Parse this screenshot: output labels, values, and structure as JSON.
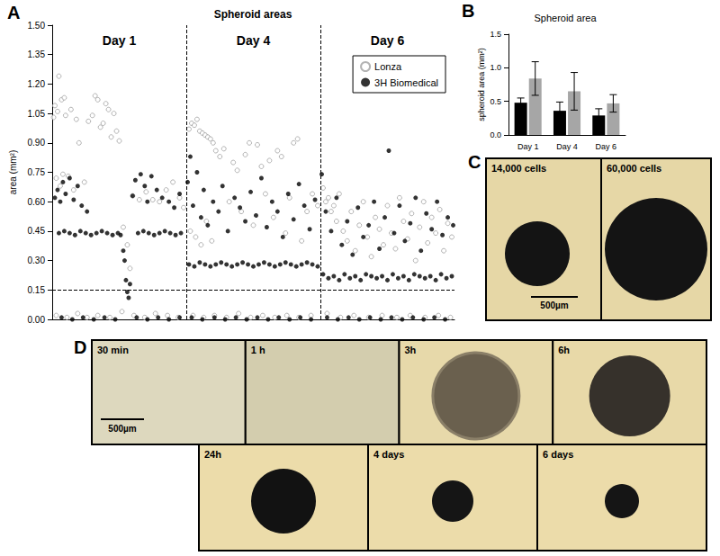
{
  "chart_data": [
    {
      "panel": "A",
      "type": "scatter",
      "title": "Spheroid areas",
      "y_label": "area (mm²)",
      "xlim": [
        0,
        300
      ],
      "ylim": [
        0,
        1.5
      ],
      "yticks": [
        {
          "value": 0,
          "label": "0.00"
        },
        0.15,
        {
          "value": 0.3,
          "label": "0.30"
        },
        0.45,
        {
          "value": 0.6,
          "label": "0.60"
        },
        0.75,
        {
          "value": 0.9,
          "label": "0.90"
        },
        1.05,
        {
          "value": 1.2,
          "label": "1.20"
        },
        1.35,
        {
          "value": 1.5,
          "label": "1.50"
        }
      ],
      "tick_labels": "y",
      "grid": false,
      "legend": "upper right",
      "annotations": [
        {
          "text": "Day 1",
          "x": 50,
          "y": 1.42
        },
        {
          "text": "Day 4",
          "x": 150,
          "y": 1.42
        },
        {
          "text": "Day 6",
          "x": 250,
          "y": 1.42
        }
      ],
      "reference_lines": {
        "x": [
          100,
          200
        ],
        "y": [
          0.15
        ]
      },
      "series": [
        {
          "name": "Lonza",
          "color": "#a0a0a0",
          "marker": "open circle",
          "x": [
            1,
            2,
            3,
            4,
            5,
            6,
            7,
            8,
            9,
            10,
            12,
            14,
            16,
            18,
            20,
            24,
            27,
            30,
            32,
            34,
            36,
            38,
            40,
            42,
            44,
            46,
            48,
            50,
            53,
            56,
            58,
            60,
            65,
            70,
            75,
            80,
            85,
            90,
            95,
            98,
            3,
            11,
            19,
            26,
            34,
            43,
            52,
            61,
            69,
            77,
            86,
            94,
            102,
            104,
            106,
            108,
            110,
            112,
            114,
            116,
            118,
            120,
            122,
            125,
            128,
            132,
            135,
            138,
            141,
            144,
            147,
            150,
            153,
            156,
            159,
            162,
            165,
            168,
            171,
            174,
            177,
            180,
            183,
            186,
            190,
            194,
            198,
            103,
            107,
            111,
            115,
            119,
            105,
            113,
            121,
            130,
            139,
            148,
            157,
            166,
            175,
            184,
            193,
            202,
            204,
            206,
            208,
            210,
            212,
            214,
            217,
            220,
            223,
            226,
            229,
            232,
            235,
            238,
            241,
            244,
            247,
            250,
            253,
            256,
            259,
            262,
            265,
            268,
            271,
            274,
            277,
            280,
            283,
            286,
            289,
            292,
            295,
            298,
            205,
            215,
            225,
            236,
            246,
            257,
            267,
            278,
            288,
            297
          ],
          "values": [
            1.03,
            1.09,
            0.72,
            1.06,
            1.24,
            0.68,
            1.12,
            0.74,
            1.13,
            1.04,
            0.73,
            1.07,
            0.66,
            1.02,
            0.9,
            0.7,
            1.01,
            1.04,
            1.14,
            1.12,
            0.98,
            1.0,
            1.1,
            1.07,
            0.93,
            1.05,
            0.96,
            0.91,
            0.47,
            0.38,
            0.26,
            0.63,
            0.61,
            0.65,
            0.61,
            0.6,
            0.66,
            0.7,
            0.62,
            0.57,
            0.02,
            0.01,
            0.03,
            0.01,
            0.02,
            0.01,
            0.04,
            0.02,
            0.01,
            0.03,
            0.02,
            0.01,
            0.97,
            1.0,
            0.99,
            1.02,
            0.96,
            0.95,
            0.94,
            0.93,
            0.92,
            0.9,
            0.86,
            0.83,
            0.87,
            0.6,
            0.8,
            0.76,
            0.55,
            0.84,
            0.9,
            0.48,
            0.89,
            0.78,
            0.64,
            0.81,
            0.52,
            0.86,
            0.83,
            0.44,
            0.62,
            0.9,
            0.92,
            0.4,
            0.55,
            0.64,
            0.58,
            0.45,
            0.42,
            0.38,
            0.5,
            0.4,
            0.02,
            0.01,
            0.02,
            0.01,
            0.03,
            0.01,
            0.02,
            0.01,
            0.02,
            0.01,
            0.02,
            0.67,
            0.6,
            0.62,
            0.55,
            0.58,
            0.5,
            0.64,
            0.45,
            0.4,
            0.55,
            0.35,
            0.48,
            0.6,
            0.42,
            0.32,
            0.52,
            0.46,
            0.38,
            0.58,
            0.44,
            0.36,
            0.62,
            0.5,
            0.41,
            0.54,
            0.3,
            0.47,
            0.6,
            0.39,
            0.52,
            0.44,
            0.56,
            0.35,
            0.49,
            0.42,
            0.03,
            0.01,
            0.02,
            0.01,
            0.02,
            0.01,
            0.02,
            0.01,
            0.02,
            0.01
          ]
        },
        {
          "name": "3H Biomedical",
          "color": "#000000",
          "marker": "filled circle",
          "x": [
            5,
            9,
            13,
            17,
            21,
            25,
            29,
            33,
            37,
            41,
            45,
            49,
            51,
            64,
            68,
            72,
            76,
            80,
            84,
            88,
            92,
            96,
            2,
            4,
            6,
            8,
            10,
            13,
            16,
            19,
            22,
            26,
            60,
            62,
            66,
            69,
            71,
            74,
            78,
            82,
            87,
            91,
            95,
            53,
            54,
            55,
            56,
            57,
            58,
            7,
            15,
            23,
            31,
            39,
            47,
            63,
            71,
            79,
            87,
            95,
            102,
            106,
            110,
            114,
            118,
            122,
            126,
            130,
            134,
            138,
            142,
            146,
            150,
            154,
            158,
            162,
            166,
            170,
            174,
            178,
            182,
            186,
            190,
            194,
            198,
            101,
            103,
            105,
            108,
            111,
            113,
            116,
            120,
            124,
            127,
            131,
            136,
            140,
            144,
            148,
            152,
            156,
            160,
            164,
            168,
            172,
            176,
            180,
            184,
            188,
            192,
            196,
            104,
            112,
            121,
            129,
            137,
            145,
            153,
            161,
            169,
            177,
            185,
            193,
            202,
            206,
            210,
            214,
            218,
            222,
            226,
            230,
            234,
            238,
            242,
            246,
            250,
            254,
            258,
            262,
            266,
            270,
            274,
            278,
            282,
            286,
            290,
            294,
            298,
            201,
            204,
            208,
            212,
            216,
            220,
            224,
            228,
            232,
            236,
            240,
            244,
            248,
            251,
            255,
            259,
            263,
            267,
            271,
            275,
            279,
            283,
            287,
            291,
            295,
            299,
            205,
            213,
            221,
            229,
            237,
            245,
            253,
            261,
            269,
            277,
            285,
            293
          ],
          "values": [
            0.44,
            0.45,
            0.44,
            0.43,
            0.45,
            0.44,
            0.43,
            0.44,
            0.45,
            0.44,
            0.43,
            0.44,
            0.43,
            0.44,
            0.45,
            0.44,
            0.43,
            0.44,
            0.45,
            0.44,
            0.43,
            0.44,
            0.62,
            0.66,
            0.6,
            0.7,
            0.64,
            0.72,
            0.61,
            0.68,
            0.58,
            0.55,
            0.63,
            0.71,
            0.74,
            0.68,
            0.6,
            0.73,
            0.66,
            0.62,
            0.6,
            0.57,
            0.64,
            0.35,
            0.3,
            0.2,
            0.14,
            0.11,
            0.18,
            0.01,
            0,
            0.01,
            0,
            0.01,
            0,
            0.01,
            0,
            0.01,
            0,
            0.01,
            0.28,
            0.27,
            0.29,
            0.28,
            0.27,
            0.28,
            0.29,
            0.28,
            0.27,
            0.28,
            0.29,
            0.28,
            0.27,
            0.28,
            0.29,
            0.28,
            0.27,
            0.28,
            0.29,
            0.28,
            0.27,
            0.28,
            0.29,
            0.28,
            0.27,
            0.7,
            0.83,
            0.58,
            0.75,
            0.52,
            0.66,
            0.48,
            0.6,
            0.55,
            0.68,
            0.45,
            0.62,
            0.57,
            0.5,
            0.65,
            0.53,
            0.72,
            0.47,
            0.6,
            0.55,
            0.42,
            0.64,
            0.51,
            0.69,
            0.58,
            0.46,
            0.61,
            0.01,
            0,
            0.01,
            0,
            0.01,
            0,
            0.01,
            0,
            0.01,
            0,
            0.01,
            0,
            0.23,
            0.21,
            0.22,
            0.2,
            0.23,
            0.21,
            0.22,
            0.2,
            0.23,
            0.22,
            0.21,
            0.22,
            0.2,
            0.23,
            0.21,
            0.22,
            0.2,
            0.23,
            0.22,
            0.21,
            0.22,
            0.2,
            0.23,
            0.21,
            0.22,
            0.74,
            0.55,
            0.45,
            0.62,
            0.38,
            0.5,
            0.33,
            0.57,
            0.42,
            0.48,
            0.6,
            0.36,
            0.52,
            0.86,
            0.44,
            0.58,
            0.4,
            0.49,
            0.62,
            0.35,
            0.54,
            0.46,
            0.6,
            0.43,
            0.52,
            0.48,
            0.01,
            0,
            0.01,
            0,
            0.01,
            0,
            0.01,
            0,
            0.01,
            0,
            0.01,
            0
          ]
        }
      ]
    },
    {
      "panel": "B",
      "type": "bar",
      "title": "Spheroid area",
      "y_label": "spheroid area (mm²)",
      "categories": [
        "Day 1",
        "Day 4",
        "Day 6"
      ],
      "ylim": [
        0,
        1.5
      ],
      "yticks": [
        {
          "value": 0,
          "label": "0.0"
        },
        0.5,
        {
          "value": 1,
          "label": "1.0"
        },
        1.5
      ],
      "grid": false,
      "series": [
        {
          "color": "#000000",
          "values": [
            0.48,
            0.36,
            0.29
          ],
          "errors": [
            0.07,
            0.13,
            0.1
          ]
        },
        {
          "color": "#a6a6a6",
          "values": [
            0.84,
            0.65,
            0.47
          ],
          "errors": [
            0.25,
            0.28,
            0.13
          ]
        }
      ]
    }
  ],
  "images": [
    {
      "panel": "C",
      "labels": [
        "14,000 cells",
        "60,000 cells"
      ],
      "scale_bar": "500µm"
    },
    {
      "panel": "D",
      "labels": [
        "30 min",
        "1 h",
        "3h",
        "6h",
        "24h",
        "4 days",
        "6 days"
      ],
      "scale_bar": "500µm"
    }
  ]
}
